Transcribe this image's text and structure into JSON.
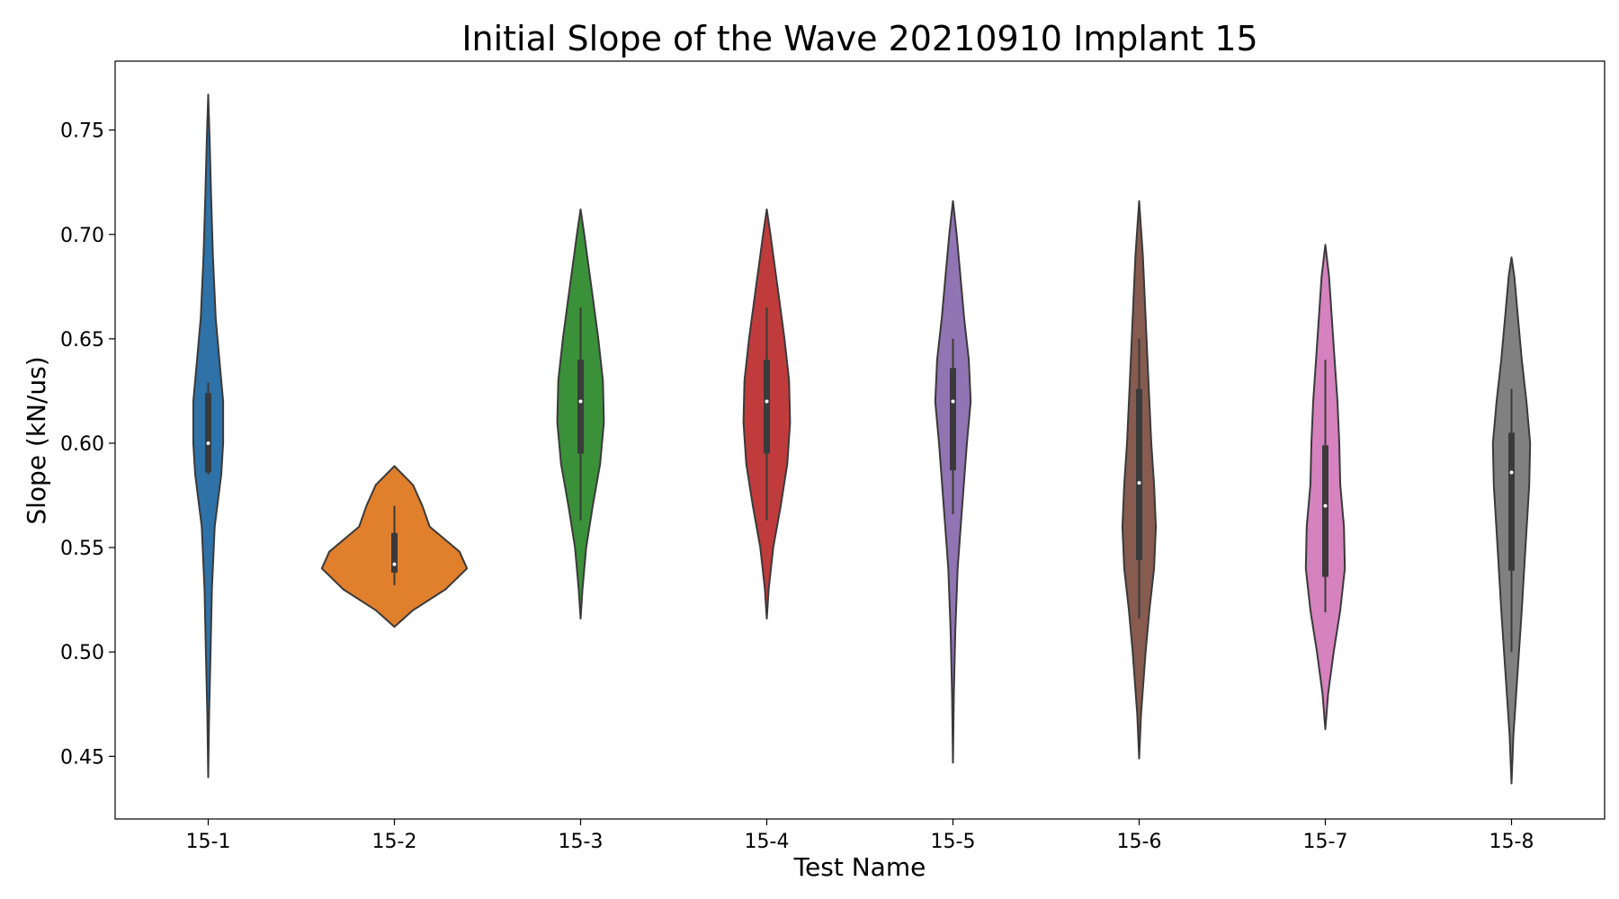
{
  "chart_data": {
    "type": "violin",
    "title": "Initial Slope of the Wave 20210910 Implant 15",
    "xlabel": "Test Name",
    "ylabel": "Slope (kN/us)",
    "ylim": [
      0.42,
      0.783
    ],
    "yticks": [
      "0.45",
      "0.50",
      "0.55",
      "0.60",
      "0.65",
      "0.70",
      "0.75"
    ],
    "categories": [
      "15-1",
      "15-2",
      "15-3",
      "15-4",
      "15-5",
      "15-6",
      "15-7",
      "15-8"
    ],
    "colors": [
      "#2f72a7",
      "#e07f2c",
      "#3b913a",
      "#c03c3c",
      "#9174b3",
      "#875b50",
      "#d582bf",
      "#808080"
    ],
    "grid": false,
    "legend": "none",
    "violins": [
      {
        "min": 0.44,
        "max": 0.767,
        "q1": 0.586,
        "median": 0.6,
        "q3": 0.624,
        "whisker_low": 0.585,
        "whisker_high": 0.629,
        "profile": [
          [
            0.44,
            0.0
          ],
          [
            0.47,
            0.01
          ],
          [
            0.5,
            0.025
          ],
          [
            0.53,
            0.04
          ],
          [
            0.56,
            0.07
          ],
          [
            0.585,
            0.14
          ],
          [
            0.6,
            0.16
          ],
          [
            0.62,
            0.16
          ],
          [
            0.64,
            0.12
          ],
          [
            0.66,
            0.08
          ],
          [
            0.69,
            0.05
          ],
          [
            0.72,
            0.03
          ],
          [
            0.745,
            0.015
          ],
          [
            0.767,
            0.0
          ]
        ]
      },
      {
        "min": 0.512,
        "max": 0.589,
        "q1": 0.538,
        "median": 0.542,
        "q3": 0.557,
        "whisker_low": 0.532,
        "whisker_high": 0.57,
        "profile": [
          [
            0.512,
            0.0
          ],
          [
            0.52,
            0.2
          ],
          [
            0.53,
            0.55
          ],
          [
            0.54,
            0.78
          ],
          [
            0.548,
            0.7
          ],
          [
            0.56,
            0.38
          ],
          [
            0.57,
            0.3
          ],
          [
            0.58,
            0.2
          ],
          [
            0.589,
            0.0
          ]
        ]
      },
      {
        "min": 0.516,
        "max": 0.712,
        "q1": 0.595,
        "median": 0.62,
        "q3": 0.64,
        "whisker_low": 0.563,
        "whisker_high": 0.665,
        "profile": [
          [
            0.516,
            0.0
          ],
          [
            0.53,
            0.02
          ],
          [
            0.55,
            0.06
          ],
          [
            0.57,
            0.13
          ],
          [
            0.59,
            0.21
          ],
          [
            0.61,
            0.25
          ],
          [
            0.63,
            0.24
          ],
          [
            0.65,
            0.19
          ],
          [
            0.67,
            0.13
          ],
          [
            0.69,
            0.07
          ],
          [
            0.7,
            0.04
          ],
          [
            0.712,
            0.0
          ]
        ]
      },
      {
        "min": 0.516,
        "max": 0.712,
        "q1": 0.595,
        "median": 0.62,
        "q3": 0.64,
        "whisker_low": 0.563,
        "whisker_high": 0.665,
        "profile": [
          [
            0.516,
            0.0
          ],
          [
            0.53,
            0.02
          ],
          [
            0.55,
            0.07
          ],
          [
            0.57,
            0.15
          ],
          [
            0.59,
            0.22
          ],
          [
            0.61,
            0.25
          ],
          [
            0.63,
            0.24
          ],
          [
            0.65,
            0.19
          ],
          [
            0.67,
            0.13
          ],
          [
            0.69,
            0.07
          ],
          [
            0.7,
            0.04
          ],
          [
            0.712,
            0.0
          ]
        ]
      },
      {
        "min": 0.447,
        "max": 0.716,
        "q1": 0.587,
        "median": 0.62,
        "q3": 0.636,
        "whisker_low": 0.566,
        "whisker_high": 0.65,
        "profile": [
          [
            0.447,
            0.0
          ],
          [
            0.48,
            0.01
          ],
          [
            0.51,
            0.025
          ],
          [
            0.54,
            0.05
          ],
          [
            0.57,
            0.1
          ],
          [
            0.6,
            0.15
          ],
          [
            0.62,
            0.19
          ],
          [
            0.64,
            0.17
          ],
          [
            0.66,
            0.12
          ],
          [
            0.68,
            0.08
          ],
          [
            0.7,
            0.04
          ],
          [
            0.716,
            0.0
          ]
        ]
      },
      {
        "min": 0.449,
        "max": 0.716,
        "q1": 0.544,
        "median": 0.581,
        "q3": 0.626,
        "whisker_low": 0.516,
        "whisker_high": 0.65,
        "profile": [
          [
            0.449,
            0.0
          ],
          [
            0.47,
            0.02
          ],
          [
            0.5,
            0.07
          ],
          [
            0.52,
            0.11
          ],
          [
            0.54,
            0.16
          ],
          [
            0.56,
            0.18
          ],
          [
            0.58,
            0.16
          ],
          [
            0.6,
            0.13
          ],
          [
            0.63,
            0.1
          ],
          [
            0.66,
            0.07
          ],
          [
            0.69,
            0.04
          ],
          [
            0.716,
            0.0
          ]
        ]
      },
      {
        "min": 0.463,
        "max": 0.695,
        "q1": 0.536,
        "median": 0.57,
        "q3": 0.599,
        "whisker_low": 0.519,
        "whisker_high": 0.64,
        "profile": [
          [
            0.463,
            0.0
          ],
          [
            0.48,
            0.03
          ],
          [
            0.5,
            0.09
          ],
          [
            0.52,
            0.16
          ],
          [
            0.54,
            0.21
          ],
          [
            0.56,
            0.2
          ],
          [
            0.58,
            0.16
          ],
          [
            0.6,
            0.15
          ],
          [
            0.62,
            0.13
          ],
          [
            0.64,
            0.1
          ],
          [
            0.66,
            0.07
          ],
          [
            0.68,
            0.04
          ],
          [
            0.695,
            0.0
          ]
        ]
      },
      {
        "min": 0.437,
        "max": 0.689,
        "q1": 0.539,
        "median": 0.586,
        "q3": 0.605,
        "whisker_low": 0.5,
        "whisker_high": 0.626,
        "profile": [
          [
            0.437,
            0.0
          ],
          [
            0.46,
            0.02
          ],
          [
            0.48,
            0.05
          ],
          [
            0.5,
            0.08
          ],
          [
            0.52,
            0.11
          ],
          [
            0.55,
            0.15
          ],
          [
            0.58,
            0.19
          ],
          [
            0.6,
            0.2
          ],
          [
            0.62,
            0.16
          ],
          [
            0.64,
            0.11
          ],
          [
            0.66,
            0.07
          ],
          [
            0.68,
            0.03
          ],
          [
            0.689,
            0.0
          ]
        ]
      }
    ]
  }
}
